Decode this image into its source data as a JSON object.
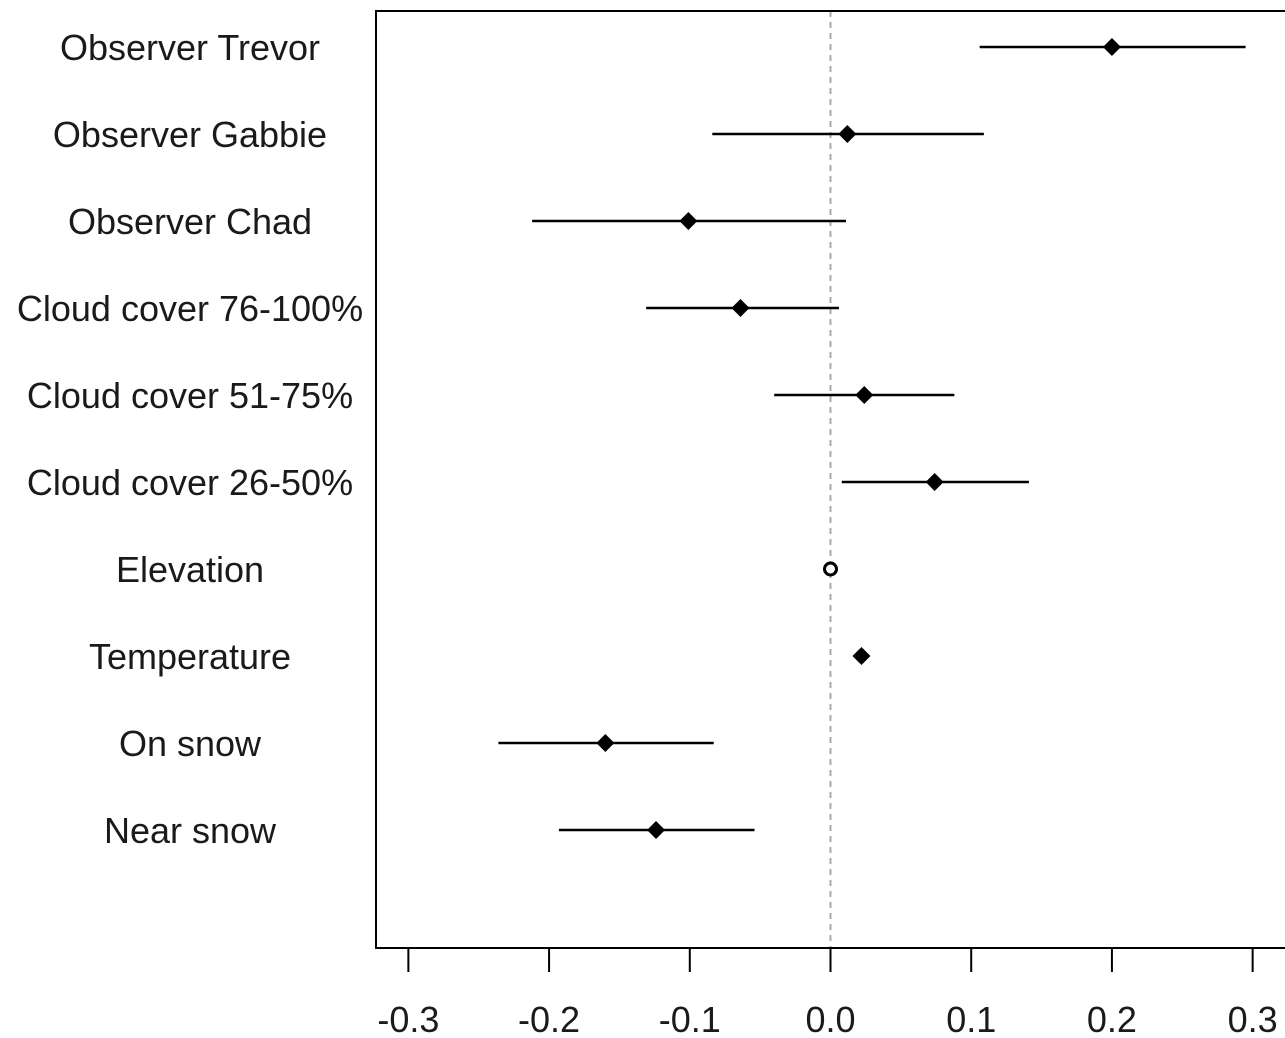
{
  "chart_data": {
    "type": "scatter",
    "title": "",
    "xlabel": "",
    "ylabel": "",
    "xlim": [
      -0.323,
      0.323
    ],
    "x_ticks": [
      -0.3,
      -0.2,
      -0.1,
      0.0,
      0.1,
      0.2,
      0.3
    ],
    "x_tick_labels": [
      "-0.3",
      "-0.2",
      "-0.1",
      "0.0",
      "0.1",
      "0.2",
      "0.3"
    ],
    "reference_line": {
      "x": 0.0,
      "style": "dashed",
      "color": "#aaaaaa"
    },
    "grid": false,
    "point_color": "#000000",
    "categories": [
      "Observer Trevor",
      "Observer Gabbie",
      "Observer Chad",
      "Cloud cover 76-100%",
      "Cloud cover 51-75%",
      "Cloud cover 26-50%",
      "Elevation",
      "Temperature",
      "On snow",
      "Near snow"
    ],
    "points": [
      {
        "label": "Observer Trevor",
        "estimate": 0.2,
        "lower": 0.106,
        "upper": 0.295,
        "marker": "filled"
      },
      {
        "label": "Observer Gabbie",
        "estimate": 0.012,
        "lower": -0.084,
        "upper": 0.109,
        "marker": "filled"
      },
      {
        "label": "Observer Chad",
        "estimate": -0.101,
        "lower": -0.212,
        "upper": 0.011,
        "marker": "filled"
      },
      {
        "label": "Cloud cover 76-100%",
        "estimate": -0.064,
        "lower": -0.131,
        "upper": 0.006,
        "marker": "filled"
      },
      {
        "label": "Cloud cover 51-75%",
        "estimate": 0.024,
        "lower": -0.04,
        "upper": 0.088,
        "marker": "filled"
      },
      {
        "label": "Cloud cover 26-50%",
        "estimate": 0.074,
        "lower": 0.008,
        "upper": 0.141,
        "marker": "filled"
      },
      {
        "label": "Elevation",
        "estimate": 0.0,
        "lower": 0.0,
        "upper": 0.0,
        "marker": "open"
      },
      {
        "label": "Temperature",
        "estimate": 0.022,
        "lower": 0.022,
        "upper": 0.022,
        "marker": "filled"
      },
      {
        "label": "On snow",
        "estimate": -0.16,
        "lower": -0.236,
        "upper": -0.083,
        "marker": "filled"
      },
      {
        "label": "Near snow",
        "estimate": -0.124,
        "lower": -0.193,
        "upper": -0.054,
        "marker": "filled"
      }
    ]
  }
}
